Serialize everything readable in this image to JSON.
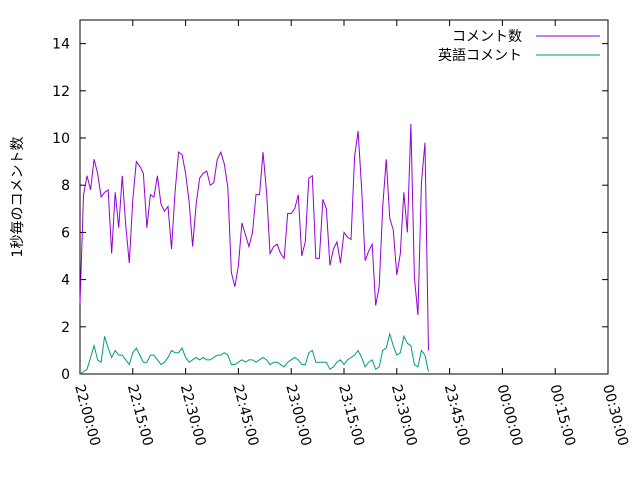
{
  "chart_data": {
    "type": "line",
    "title": "",
    "ylabel": "1秒毎のコメント数",
    "xlabel": "",
    "xlim": [
      "22:00:00",
      "00:30:00"
    ],
    "ylim": [
      0,
      15
    ],
    "x_ticks": [
      "22:00:00",
      "22:15:00",
      "22:30:00",
      "22:45:00",
      "23:00:00",
      "23:15:00",
      "23:30:00",
      "23:45:00",
      "00:00:00",
      "00:15:00",
      "00:30:00"
    ],
    "y_ticks": [
      "0",
      "2",
      "4",
      "6",
      "8",
      "10",
      "12",
      "14"
    ],
    "legend": {
      "position": "top-right"
    },
    "grid": false,
    "sample_interval_minutes": 1,
    "x_start": "22:00:00",
    "series": [
      {
        "name": "コメント数",
        "color": "#9400d3",
        "values": [
          3.0,
          7.6,
          8.4,
          7.8,
          9.1,
          8.5,
          7.5,
          7.7,
          7.8,
          5.1,
          7.7,
          6.2,
          8.4,
          6.3,
          4.7,
          7.4,
          9.0,
          8.8,
          8.5,
          6.2,
          7.6,
          7.5,
          8.4,
          7.2,
          6.9,
          7.1,
          5.3,
          7.7,
          9.4,
          9.3,
          8.5,
          7.3,
          5.4,
          7.2,
          8.3,
          8.5,
          8.6,
          8.0,
          8.1,
          9.1,
          9.4,
          8.9,
          7.9,
          4.3,
          3.7,
          4.6,
          6.4,
          5.9,
          5.4,
          6.0,
          7.6,
          7.6,
          9.4,
          7.7,
          5.1,
          5.4,
          5.5,
          5.1,
          4.9,
          6.8,
          6.8,
          7.0,
          7.6,
          5.0,
          5.6,
          8.3,
          8.4,
          4.9,
          4.9,
          7.4,
          7.0,
          4.6,
          5.3,
          5.6,
          4.7,
          6.0,
          5.8,
          5.7,
          9.2,
          10.3,
          7.9,
          4.8,
          5.2,
          5.5,
          2.9,
          3.7,
          7.1,
          9.1,
          6.6,
          6.1,
          4.2,
          5.1,
          7.7,
          6.0,
          10.6,
          4.1,
          2.5,
          8.1,
          9.8,
          1.0
        ]
      },
      {
        "name": "英語コメント",
        "color": "#009e73",
        "values": [
          0.0,
          0.1,
          0.2,
          0.7,
          1.2,
          0.6,
          0.5,
          1.6,
          1.1,
          0.7,
          1.0,
          0.8,
          0.8,
          0.6,
          0.4,
          0.9,
          1.1,
          0.8,
          0.5,
          0.5,
          0.8,
          0.8,
          0.6,
          0.4,
          0.5,
          0.7,
          1.0,
          0.9,
          0.9,
          1.1,
          0.7,
          0.5,
          0.6,
          0.7,
          0.6,
          0.7,
          0.6,
          0.6,
          0.7,
          0.8,
          0.8,
          0.9,
          0.8,
          0.4,
          0.4,
          0.5,
          0.6,
          0.5,
          0.6,
          0.6,
          0.5,
          0.6,
          0.7,
          0.6,
          0.4,
          0.5,
          0.5,
          0.4,
          0.3,
          0.5,
          0.6,
          0.7,
          0.6,
          0.4,
          0.4,
          0.9,
          1.0,
          0.5,
          0.5,
          0.5,
          0.5,
          0.2,
          0.3,
          0.5,
          0.6,
          0.4,
          0.6,
          0.7,
          0.8,
          1.0,
          0.7,
          0.3,
          0.5,
          0.6,
          0.2,
          0.3,
          1.0,
          1.1,
          1.7,
          1.2,
          0.8,
          0.9,
          1.6,
          1.3,
          1.2,
          0.4,
          0.3,
          1.0,
          0.8,
          0.1
        ]
      }
    ]
  }
}
